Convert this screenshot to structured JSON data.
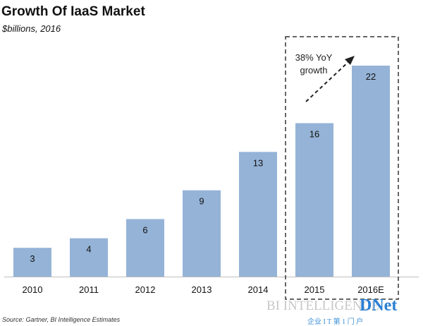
{
  "chart_data": {
    "type": "bar",
    "title": "Growth Of IaaS Market",
    "subtitle": "$billions, 2016",
    "categories": [
      "2010",
      "2011",
      "2012",
      "2013",
      "2014",
      "2015",
      "2016E"
    ],
    "values": [
      3,
      4,
      6,
      9,
      13,
      16,
      22
    ],
    "ylim": [
      0,
      22
    ],
    "grid": false,
    "bar_color": "#95b3d7",
    "annotation": {
      "text_line1": "38% YoY",
      "text_line2": "growth"
    },
    "highlight": {
      "categories": [
        "2015",
        "2016E"
      ],
      "style": "dashed-box"
    },
    "source": "Source: Gartner, BI Intelligence Estimates"
  },
  "watermark": {
    "text1": "BI INTELLIGENCE",
    "text2": "企业 I T 第 1 门 户",
    "brand": "DNet"
  }
}
